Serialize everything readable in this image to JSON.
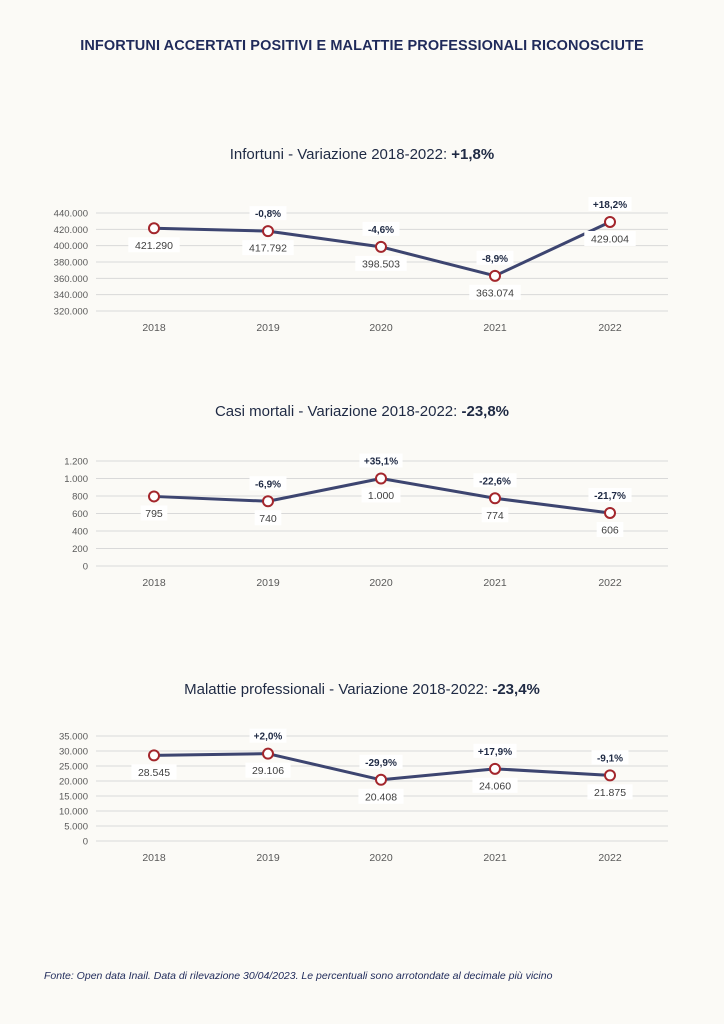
{
  "header": {
    "title": "INFORTUNI ACCERTATI POSITIVI E MALATTIE PROFESSIONALI RICONOSCIUTE"
  },
  "footer": {
    "source": "Fonte: Open data Inail. Data di rilevazione 30/04/2023. Le percentuali sono arrotondate al decimale più vicino"
  },
  "colors": {
    "line": "#3d4570",
    "marker_stroke": "#a3262c",
    "marker_fill": "#ffffff",
    "grid": "#d9d9d9",
    "axis_text": "#595959"
  },
  "chart_data": [
    {
      "type": "line",
      "title_prefix": "Infortuni - Variazione 2018-2022: ",
      "title_value": "+1,8%",
      "categories": [
        "2018",
        "2019",
        "2020",
        "2021",
        "2022"
      ],
      "values": [
        421290,
        417792,
        398503,
        363074,
        429004
      ],
      "value_labels": [
        "421.290",
        "417.792",
        "398.503",
        "363.074",
        "429.004"
      ],
      "change_labels": [
        "",
        "-0,8%",
        "-4,6%",
        "-8,9%",
        "+18,2%"
      ],
      "ylim": [
        320000,
        440000
      ],
      "yticks": [
        320000,
        340000,
        360000,
        380000,
        400000,
        420000,
        440000
      ],
      "ytick_labels": [
        "320.000",
        "340.000",
        "360.000",
        "380.000",
        "400.000",
        "420.000",
        "440.000"
      ],
      "grid": true
    },
    {
      "type": "line",
      "title_prefix": "Casi mortali - Variazione 2018-2022: ",
      "title_value": "-23,8%",
      "categories": [
        "2018",
        "2019",
        "2020",
        "2021",
        "2022"
      ],
      "values": [
        795,
        740,
        1000,
        774,
        606
      ],
      "value_labels": [
        "795",
        "740",
        "1.000",
        "774",
        "606"
      ],
      "change_labels": [
        "",
        "-6,9%",
        "+35,1%",
        "-22,6%",
        "-21,7%"
      ],
      "ylim": [
        0,
        1200
      ],
      "yticks": [
        0,
        200,
        400,
        600,
        800,
        1000,
        1200
      ],
      "ytick_labels": [
        "0",
        "200",
        "400",
        "600",
        "800",
        "1.000",
        "1.200"
      ],
      "grid": true
    },
    {
      "type": "line",
      "title_prefix": "Malattie professionali - Variazione 2018-2022: ",
      "title_value": "-23,4%",
      "categories": [
        "2018",
        "2019",
        "2020",
        "2021",
        "2022"
      ],
      "values": [
        28545,
        29106,
        20408,
        24060,
        21875
      ],
      "value_labels": [
        "28.545",
        "29.106",
        "20.408",
        "24.060",
        "21.875"
      ],
      "change_labels": [
        "",
        "+2,0%",
        "-29,9%",
        "+17,9%",
        "-9,1%"
      ],
      "ylim": [
        0,
        35000
      ],
      "yticks": [
        0,
        5000,
        10000,
        15000,
        20000,
        25000,
        30000,
        35000
      ],
      "ytick_labels": [
        "0",
        "5.000",
        "10.000",
        "15.000",
        "20.000",
        "25.000",
        "30.000",
        "35.000"
      ],
      "grid": true
    }
  ]
}
